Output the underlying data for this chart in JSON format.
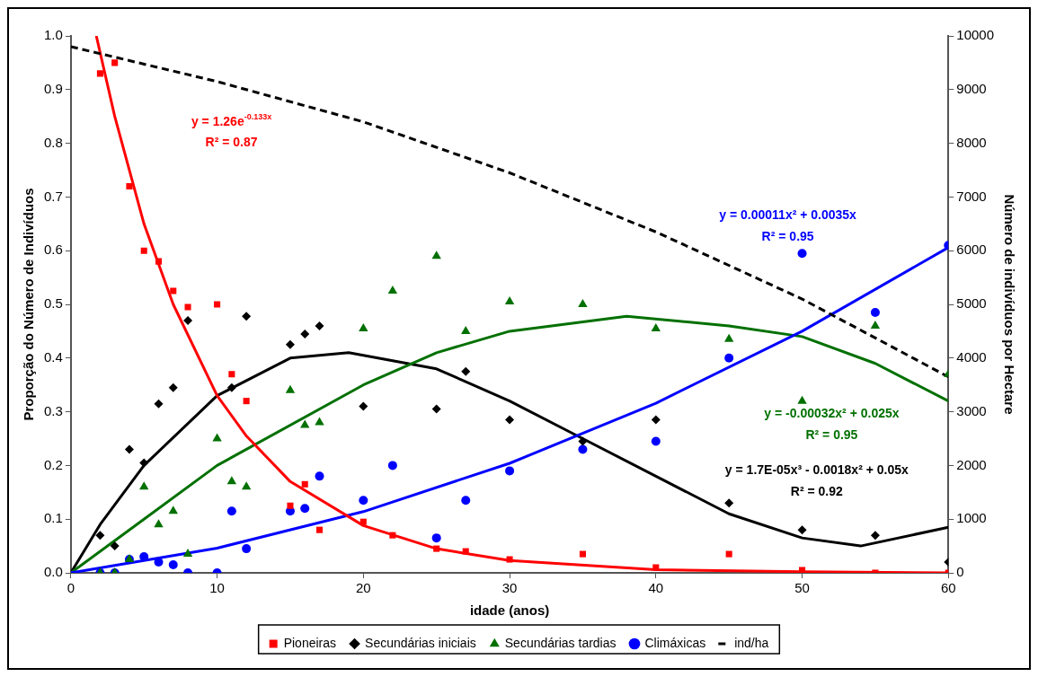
{
  "chart_data": {
    "type": "scatter",
    "xlabel": "idade (anos)",
    "ylabel": "Proporção do Número de Indivíduos",
    "y2label": "Número de indivíduos por Hectare",
    "xlim": [
      0,
      60
    ],
    "xticks": [
      0,
      10,
      20,
      30,
      40,
      50,
      60
    ],
    "ylim": [
      0,
      1
    ],
    "yticks": [
      {
        "value": 0,
        "label": "0.0"
      },
      {
        "value": 0.1,
        "label": "0.1"
      },
      {
        "value": 0.2,
        "label": "0.2"
      },
      {
        "value": 0.3,
        "label": "0.3"
      },
      {
        "value": 0.4,
        "label": "0.4"
      },
      {
        "value": 0.5,
        "label": "0.5"
      },
      {
        "value": 0.6,
        "label": "0.6"
      },
      {
        "value": 0.7,
        "label": "0.7"
      },
      {
        "value": 0.8,
        "label": "0.8"
      },
      {
        "value": 0.9,
        "label": "0.9"
      },
      {
        "value": 1,
        "label": "1.0"
      }
    ],
    "y2lim": [
      0,
      10000
    ],
    "y2ticks": [
      0,
      1000,
      2000,
      3000,
      4000,
      5000,
      6000,
      7000,
      8000,
      9000,
      10000
    ],
    "grid": false,
    "legend": "bottom",
    "series": [
      {
        "name": "Pioneiras",
        "type": "scatter",
        "marker": "square",
        "color": "#ff0000",
        "x": [
          2,
          3,
          4,
          5,
          6,
          7,
          8,
          10,
          11,
          12,
          15,
          16,
          17,
          20,
          22,
          25,
          27,
          30,
          35,
          40,
          45,
          50,
          55,
          60
        ],
        "values": [
          0.93,
          0.95,
          0.72,
          0.6,
          0.58,
          0.525,
          0.495,
          0.5,
          0.37,
          0.32,
          0.125,
          0.165,
          0.08,
          0.095,
          0.07,
          0.045,
          0.04,
          0.025,
          0.035,
          0.01,
          0.035,
          0.005,
          0,
          0
        ]
      },
      {
        "name": "Secundárias iniciais",
        "type": "scatter",
        "marker": "diamond",
        "color": "#000000",
        "x": [
          2,
          3,
          4,
          5,
          6,
          7,
          8,
          11,
          12,
          15,
          16,
          17,
          20,
          25,
          27,
          30,
          35,
          40,
          45,
          50,
          55,
          60
        ],
        "values": [
          0.07,
          0.05,
          0.23,
          0.205,
          0.315,
          0.345,
          0.47,
          0.345,
          0.478,
          0.425,
          0.445,
          0.46,
          0.31,
          0.305,
          0.375,
          0.285,
          0.245,
          0.285,
          0.13,
          0.08,
          0.07,
          0.02
        ]
      },
      {
        "name": "Secundárias tardias",
        "type": "scatter",
        "marker": "triangle",
        "color": "#007000",
        "x": [
          2,
          3,
          4,
          5,
          6,
          7,
          8,
          10,
          11,
          12,
          15,
          16,
          17,
          20,
          22,
          25,
          27,
          30,
          35,
          40,
          45,
          50,
          55,
          60
        ],
        "values": [
          0,
          0,
          0.025,
          0.16,
          0.09,
          0.115,
          0.035,
          0.25,
          0.17,
          0.16,
          0.34,
          0.275,
          0.28,
          0.455,
          0.525,
          0.59,
          0.45,
          0.505,
          0.5,
          0.455,
          0.435,
          0.32,
          0.46,
          0.37
        ]
      },
      {
        "name": "Climáxicas",
        "type": "scatter",
        "marker": "circle",
        "color": "#0000ff",
        "x": [
          2,
          3,
          4,
          5,
          6,
          7,
          8,
          10,
          11,
          12,
          15,
          16,
          17,
          20,
          22,
          25,
          27,
          30,
          35,
          40,
          45,
          50,
          55,
          60
        ],
        "values": [
          0,
          0,
          0.025,
          0.03,
          0.02,
          0.015,
          0,
          0,
          0.115,
          0.045,
          0.115,
          0.12,
          0.18,
          0.135,
          0.2,
          0.065,
          0.135,
          0.19,
          0.23,
          0.245,
          0.4,
          0.595,
          0.485,
          0.61
        ]
      },
      {
        "name": "ind/ha",
        "type": "line",
        "axis": "y2",
        "marker": "none",
        "line_style": "dashed",
        "color": "#000000",
        "x": [
          0,
          10,
          20,
          30,
          40,
          50,
          60
        ],
        "values": [
          9800,
          9150,
          8400,
          7450,
          6350,
          5100,
          3650
        ]
      },
      {
        "type": "line",
        "marker": "none",
        "line_style": "solid",
        "color": "#ff0000",
        "x": [
          1.74,
          3,
          5,
          7,
          10,
          12,
          15,
          20,
          25,
          30,
          40,
          50,
          60
        ],
        "values": [
          1,
          0.85,
          0.65,
          0.5,
          0.33,
          0.255,
          0.17,
          0.088,
          0.045,
          0.023,
          0.006,
          0.002,
          0
        ]
      },
      {
        "type": "line",
        "marker": "none",
        "line_style": "solid",
        "color": "#0000ff",
        "x": [
          0,
          10,
          20,
          30,
          40,
          50,
          60
        ],
        "values": [
          0,
          0.046,
          0.114,
          0.204,
          0.316,
          0.45,
          0.606
        ]
      },
      {
        "type": "line",
        "marker": "none",
        "line_style": "solid",
        "color": "#007000",
        "x": [
          0,
          5,
          10,
          20,
          25,
          30,
          38,
          45,
          50,
          55,
          60
        ],
        "values": [
          0,
          0.1,
          0.2,
          0.35,
          0.41,
          0.45,
          0.478,
          0.46,
          0.44,
          0.39,
          0.32
        ]
      },
      {
        "type": "line",
        "marker": "none",
        "line_style": "solid",
        "color": "#000000",
        "x": [
          0,
          2,
          5,
          10,
          15,
          19,
          25,
          30,
          35,
          40,
          45,
          50,
          54,
          60
        ],
        "values": [
          0,
          0.09,
          0.2,
          0.33,
          0.4,
          0.41,
          0.38,
          0.32,
          0.25,
          0.18,
          0.11,
          0.065,
          0.05,
          0.085
        ]
      }
    ],
    "annotations": [
      "y = 1.26e$^{-0.133x}$",
      "R² = 0.87",
      "y = 0.00011x² + 0.0035x",
      "R² = 0.95",
      "y = -0.00032x² + 0.025x",
      "R² = 0.95",
      "y = 1.7E-05x³ - 0.0018x² + 0.05x",
      "R² = 0.92"
    ]
  }
}
